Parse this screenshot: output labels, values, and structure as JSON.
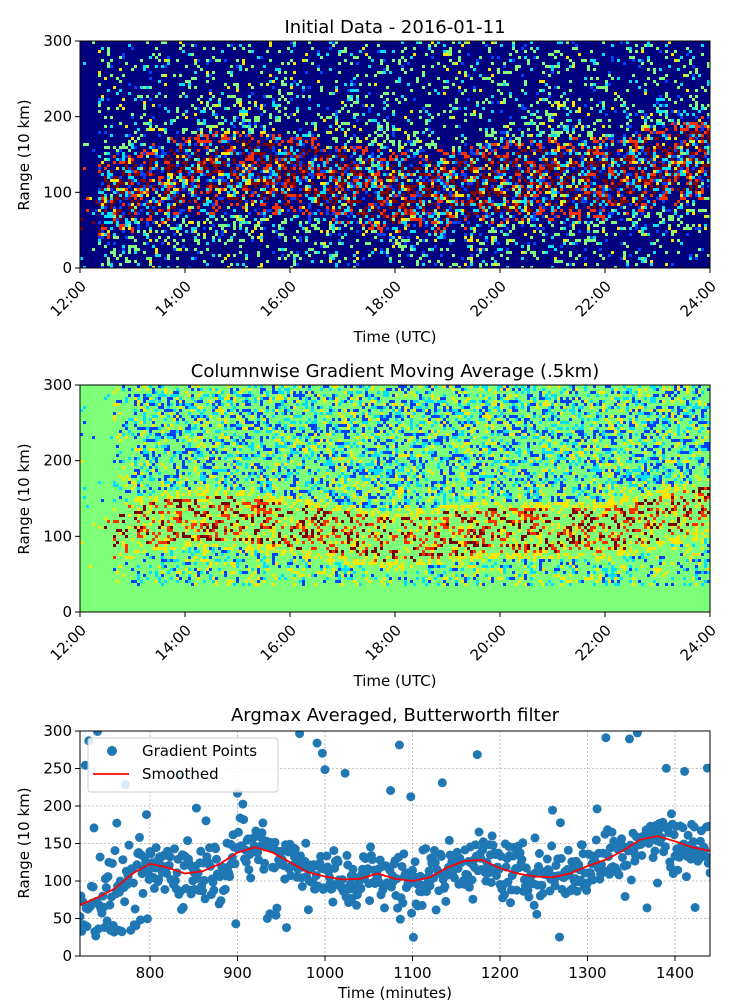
{
  "chart_data": [
    {
      "type": "heatmap",
      "title": "Initial Data - 2016-01-11",
      "xlabel": "Time (UTC)",
      "ylabel": "Range (10 km)",
      "xticks": [
        "12:00",
        "14:00",
        "16:00",
        "18:00",
        "20:00",
        "22:00",
        "24:00"
      ],
      "yticks": [
        "0",
        "100",
        "200",
        "300"
      ],
      "xlim_hours": [
        12,
        24
      ],
      "ylim": [
        0,
        300
      ],
      "colormap": [
        "#00007f",
        "#0040ff",
        "#00e0ff",
        "#7dff7a",
        "#ffe600",
        "#ff3000",
        "#7f0000"
      ],
      "band_center_profile": {
        "hours": [
          12,
          13,
          14,
          15,
          16,
          17,
          18,
          19,
          20,
          21,
          22,
          23,
          24
        ],
        "range": [
          80,
          105,
          125,
          130,
          125,
          115,
          100,
          105,
          115,
          120,
          120,
          135,
          150
        ]
      }
    },
    {
      "type": "heatmap",
      "title": "Columnwise Gradient Moving Average (.5km)",
      "xlabel": "Time (UTC)",
      "ylabel": "Range (10 km)",
      "xticks": [
        "12:00",
        "14:00",
        "16:00",
        "18:00",
        "20:00",
        "22:00",
        "24:00"
      ],
      "yticks": [
        "0",
        "100",
        "200",
        "300"
      ],
      "xlim_hours": [
        12,
        24
      ],
      "ylim": [
        0,
        300
      ],
      "background_color": "#7dff7a",
      "floor_range": 35,
      "band_center_profile": {
        "hours": [
          12,
          13,
          14,
          15,
          16,
          17,
          18,
          19,
          20,
          21,
          22,
          23,
          24
        ],
        "range": [
          80,
          115,
          125,
          125,
          115,
          105,
          95,
          105,
          110,
          110,
          110,
          125,
          140
        ]
      }
    },
    {
      "type": "scatter",
      "title": "Argmax Averaged, Butterworth filter",
      "xlabel": "Time (minutes)",
      "ylabel": "Range (10 km)",
      "xlim": [
        720,
        1440
      ],
      "ylim": [
        0,
        300
      ],
      "xticks": [
        800,
        900,
        1000,
        1100,
        1200,
        1300,
        1400
      ],
      "yticks": [
        0,
        50,
        100,
        150,
        200,
        250,
        300
      ],
      "grid": true,
      "legend_position": "top-left",
      "colors": {
        "points": "#1f77b4",
        "smoothed": "#ff0000"
      },
      "series": [
        {
          "name": "Gradient Points",
          "kind": "scatter",
          "spread": 28,
          "outlier_fraction": 0.1
        },
        {
          "name": "Smoothed",
          "kind": "line",
          "x": [
            720,
            740,
            760,
            780,
            800,
            820,
            840,
            860,
            880,
            900,
            920,
            940,
            960,
            980,
            1000,
            1020,
            1040,
            1060,
            1080,
            1100,
            1120,
            1140,
            1160,
            1180,
            1200,
            1220,
            1240,
            1260,
            1280,
            1300,
            1320,
            1340,
            1360,
            1380,
            1400,
            1420,
            1440
          ],
          "y": [
            68,
            78,
            90,
            110,
            123,
            118,
            110,
            113,
            123,
            138,
            145,
            138,
            125,
            112,
            106,
            102,
            103,
            110,
            103,
            100,
            105,
            118,
            127,
            128,
            117,
            110,
            106,
            105,
            110,
            120,
            128,
            140,
            155,
            160,
            153,
            145,
            140
          ]
        }
      ]
    }
  ]
}
